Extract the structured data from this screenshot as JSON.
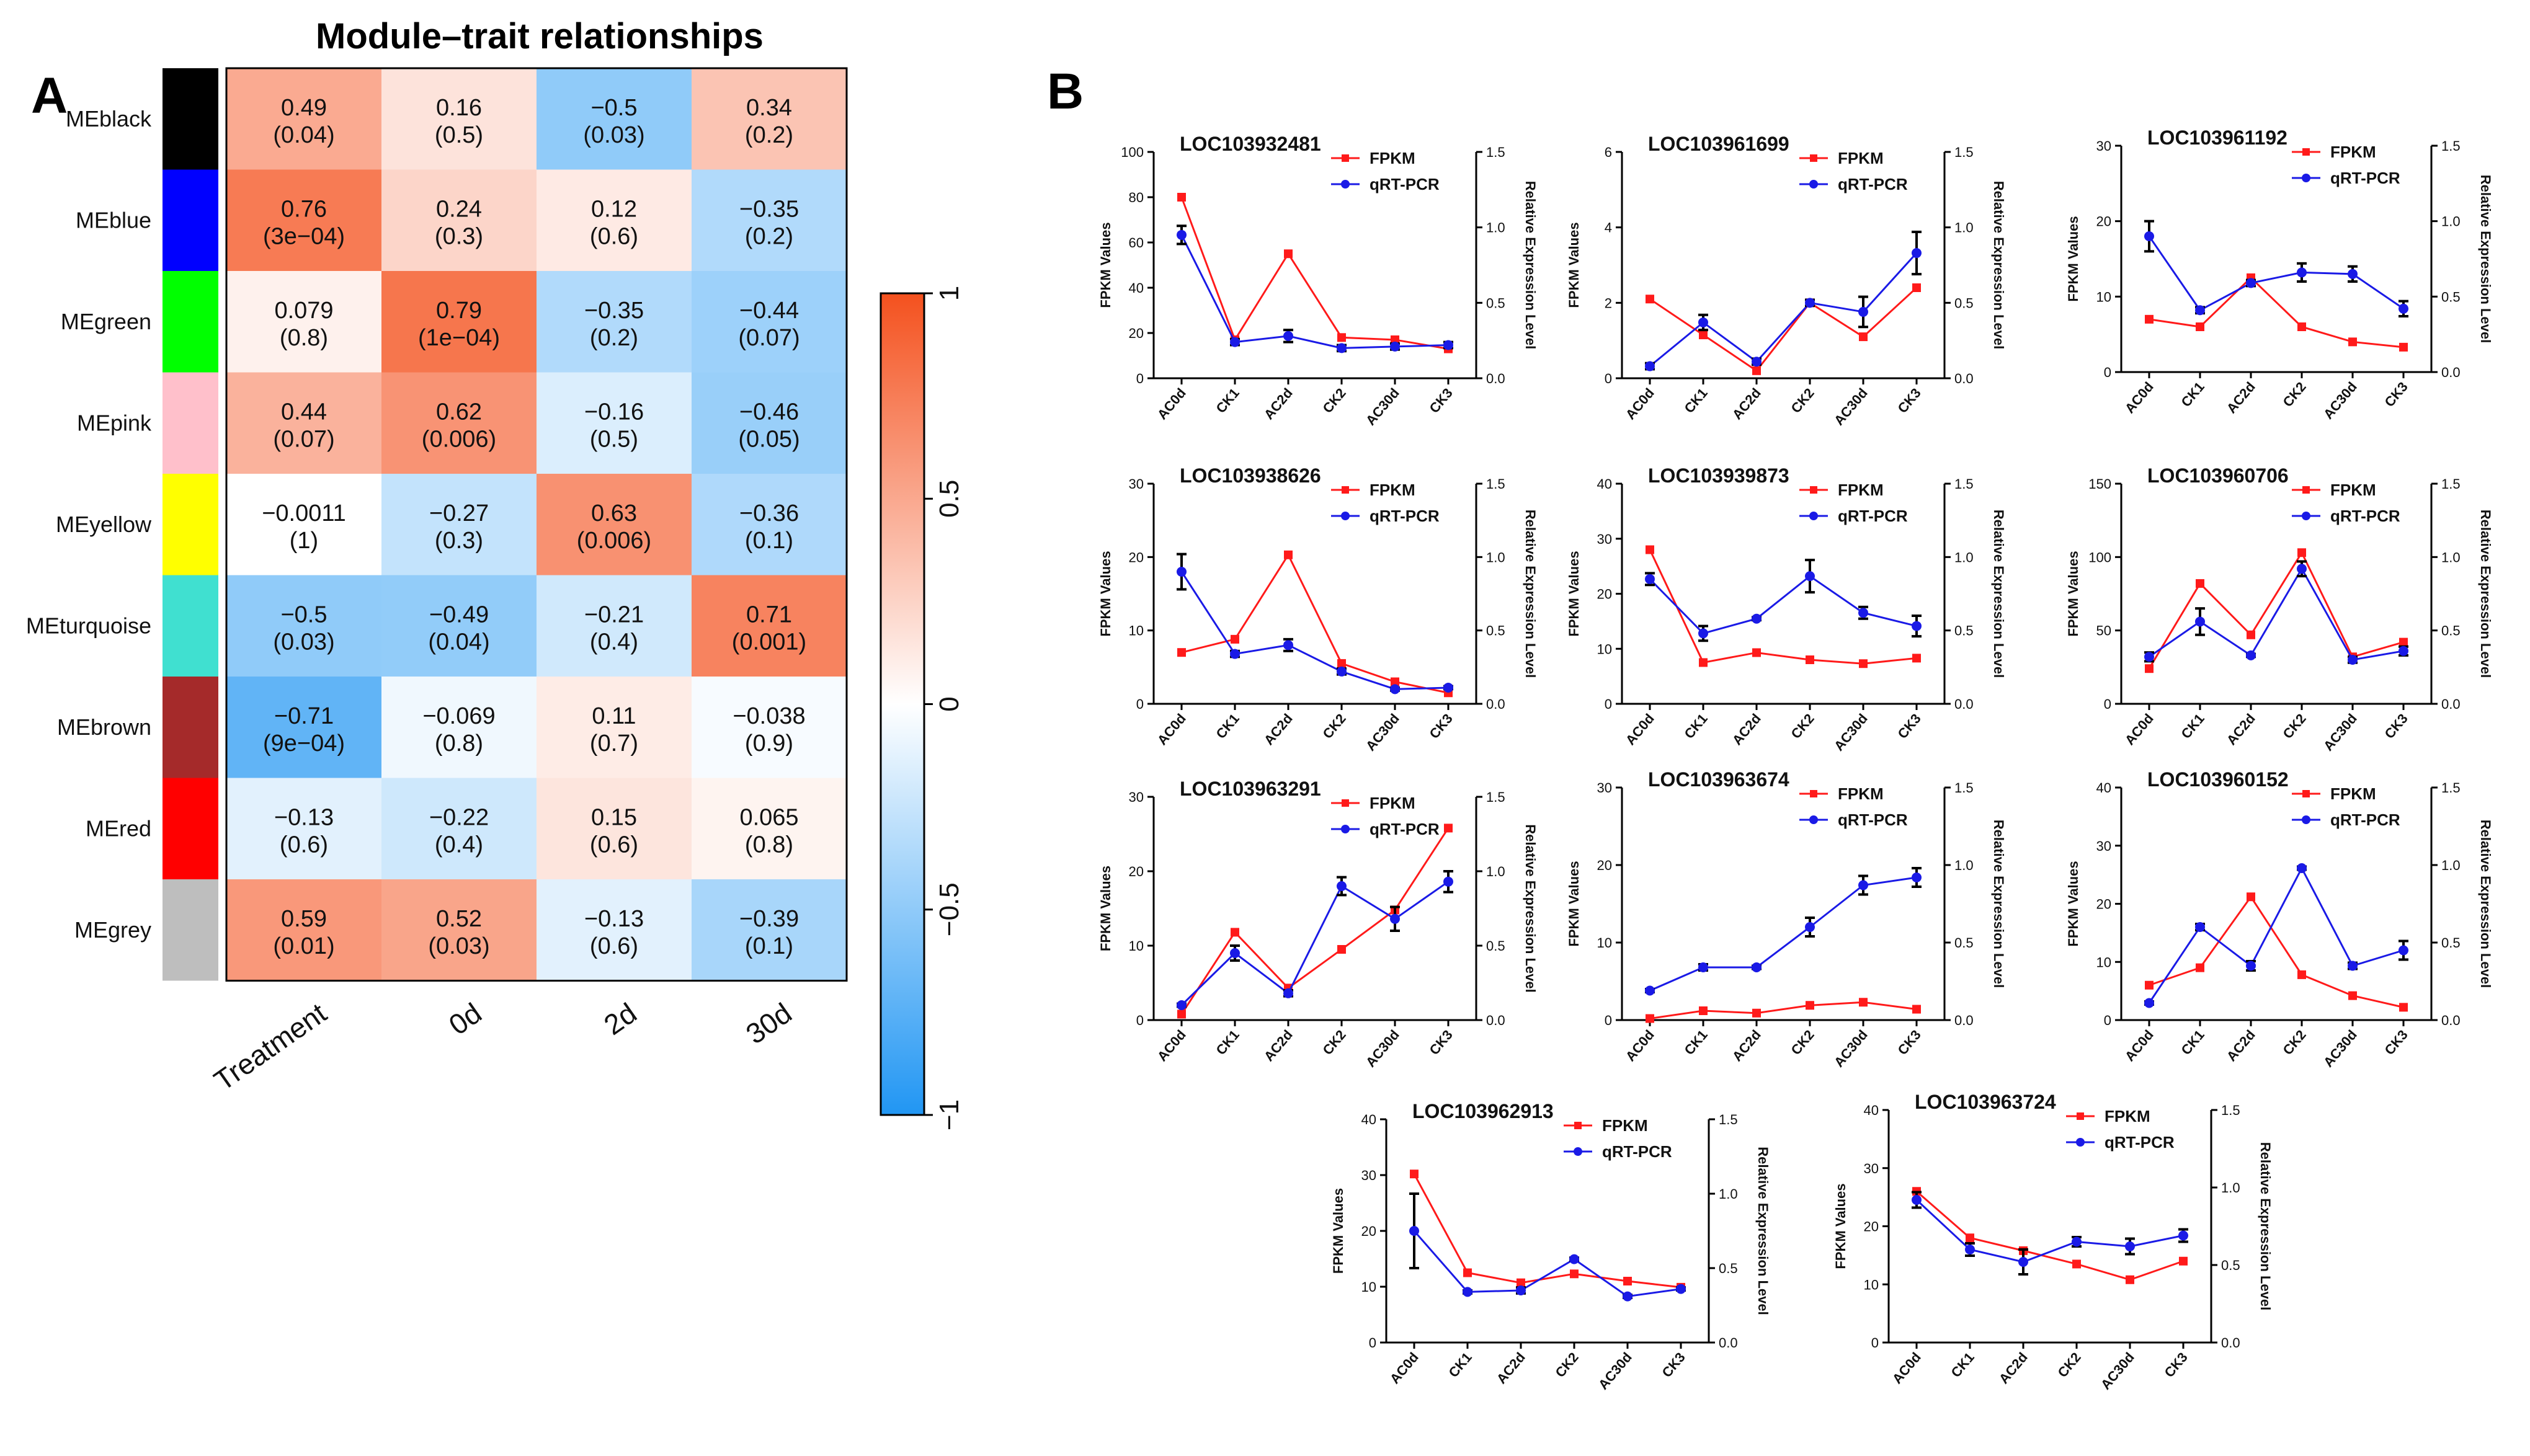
{
  "panel_a": {
    "letter": "A",
    "title": "Module–trait relationships",
    "columns": [
      "Treatment",
      "0d",
      "2d",
      "30d"
    ],
    "modules": [
      {
        "name": "MEblack",
        "color": "#000000",
        "cells": [
          [
            "0.49",
            "(0.04)",
            0.49
          ],
          [
            "0.16",
            "(0.5)",
            0.16
          ],
          [
            "−0.5",
            "(0.03)",
            -0.5
          ],
          [
            "0.34",
            "(0.2)",
            0.34
          ]
        ]
      },
      {
        "name": "MEblue",
        "color": "#0000FF",
        "cells": [
          [
            "0.76",
            "(3e−04)",
            0.76
          ],
          [
            "0.24",
            "(0.3)",
            0.24
          ],
          [
            "0.12",
            "(0.6)",
            0.12
          ],
          [
            "−0.35",
            "(0.2)",
            -0.35
          ]
        ]
      },
      {
        "name": "MEgreen",
        "color": "#00FF00",
        "cells": [
          [
            "0.079",
            "(0.8)",
            0.079
          ],
          [
            "0.79",
            "(1e−04)",
            0.79
          ],
          [
            "−0.35",
            "(0.2)",
            -0.35
          ],
          [
            "−0.44",
            "(0.07)",
            -0.44
          ]
        ]
      },
      {
        "name": "MEpink",
        "color": "#FFC0CB",
        "cells": [
          [
            "0.44",
            "(0.07)",
            0.44
          ],
          [
            "0.62",
            "(0.006)",
            0.62
          ],
          [
            "−0.16",
            "(0.5)",
            -0.16
          ],
          [
            "−0.46",
            "(0.05)",
            -0.46
          ]
        ]
      },
      {
        "name": "MEyellow",
        "color": "#FFFF00",
        "cells": [
          [
            "−0.0011",
            "(1)",
            -0.0011
          ],
          [
            "−0.27",
            "(0.3)",
            -0.27
          ],
          [
            "0.63",
            "(0.006)",
            0.63
          ],
          [
            "−0.36",
            "(0.1)",
            -0.36
          ]
        ]
      },
      {
        "name": "MEturquoise",
        "color": "#40E0D0",
        "cells": [
          [
            "−0.5",
            "(0.03)",
            -0.5
          ],
          [
            "−0.49",
            "(0.04)",
            -0.49
          ],
          [
            "−0.21",
            "(0.4)",
            -0.21
          ],
          [
            "0.71",
            "(0.001)",
            0.71
          ]
        ]
      },
      {
        "name": "MEbrown",
        "color": "#A52A2A",
        "cells": [
          [
            "−0.71",
            "(9e−04)",
            -0.71
          ],
          [
            "−0.069",
            "(0.8)",
            -0.069
          ],
          [
            "0.11",
            "(0.7)",
            0.11
          ],
          [
            "−0.038",
            "(0.9)",
            -0.038
          ]
        ]
      },
      {
        "name": "MEred",
        "color": "#FF0000",
        "cells": [
          [
            "−0.13",
            "(0.6)",
            -0.13
          ],
          [
            "−0.22",
            "(0.4)",
            -0.22
          ],
          [
            "0.15",
            "(0.6)",
            0.15
          ],
          [
            "0.065",
            "(0.8)",
            0.065
          ]
        ]
      },
      {
        "name": "MEgrey",
        "color": "#BEBEBE",
        "cells": [
          [
            "0.59",
            "(0.01)",
            0.59
          ],
          [
            "0.52",
            "(0.03)",
            0.52
          ],
          [
            "−0.13",
            "(0.6)",
            -0.13
          ],
          [
            "−0.39",
            "(0.1)",
            -0.39
          ]
        ]
      }
    ],
    "colorbar": {
      "ticks": [
        "1",
        "0.5",
        "0",
        "−0.5",
        "−1"
      ],
      "low_color": "#2196F3",
      "mid_color": "#FFFFFF",
      "high_color": "#F4511E"
    }
  },
  "panel_b": {
    "letter": "B",
    "x_categories": [
      "AC0d",
      "CK1",
      "AC2d",
      "CK2",
      "AC30d",
      "CK3"
    ],
    "left_axis_title": "FPKM Values",
    "right_axis_title": "Relative Expression Level",
    "legend": {
      "fpkm": "FPKM",
      "qrt": "qRT-PCR",
      "fpkm_color": "#FF1A1A",
      "qrt_color": "#1A1AE6"
    },
    "right_ticks": [
      "0.0",
      "0.5",
      "1.0",
      "1.5"
    ]
  },
  "chart_data": [
    {
      "type": "line",
      "title": "LOC103932481",
      "categories": [
        "AC0d",
        "CK1",
        "AC2d",
        "CK2",
        "AC30d",
        "CK3"
      ],
      "ylim": [
        0,
        100
      ],
      "yticks": [
        "0",
        "20",
        "40",
        "60",
        "80",
        "100"
      ],
      "y2lim": [
        0,
        1.5
      ],
      "series": [
        {
          "name": "FPKM",
          "axis": "left",
          "values": [
            80,
            17,
            55,
            18,
            17,
            13
          ],
          "err": [
            0,
            0,
            0,
            0,
            0,
            0
          ]
        },
        {
          "name": "qRT-PCR",
          "axis": "right",
          "values": [
            0.95,
            0.24,
            0.28,
            0.2,
            0.21,
            0.22
          ],
          "err": [
            0.06,
            0.02,
            0.04,
            0.02,
            0.02,
            0.02
          ]
        }
      ]
    },
    {
      "type": "line",
      "title": "LOC103961699",
      "categories": [
        "AC0d",
        "CK1",
        "AC2d",
        "CK2",
        "AC30d",
        "CK3"
      ],
      "ylim": [
        0,
        6
      ],
      "yticks": [
        "0",
        "2",
        "4",
        "6"
      ],
      "y2lim": [
        0,
        1.5
      ],
      "series": [
        {
          "name": "FPKM",
          "axis": "left",
          "values": [
            2.1,
            1.15,
            0.2,
            2.0,
            1.1,
            2.4
          ],
          "err": [
            0,
            0,
            0,
            0,
            0,
            0
          ]
        },
        {
          "name": "qRT-PCR",
          "axis": "right",
          "values": [
            0.08,
            0.37,
            0.11,
            0.5,
            0.44,
            0.83
          ],
          "err": [
            0.02,
            0.05,
            0.02,
            0.02,
            0.1,
            0.14
          ]
        }
      ]
    },
    {
      "type": "line",
      "title": "LOC103961192",
      "categories": [
        "AC0d",
        "CK1",
        "AC2d",
        "CK2",
        "AC30d",
        "CK3"
      ],
      "ylim": [
        0,
        30
      ],
      "yticks": [
        "0",
        "10",
        "20",
        "30"
      ],
      "y2lim": [
        0,
        1.5
      ],
      "series": [
        {
          "name": "FPKM",
          "axis": "left",
          "values": [
            7,
            6,
            12.5,
            6,
            4,
            3.3
          ],
          "err": [
            0,
            0,
            0,
            0,
            0,
            0
          ]
        },
        {
          "name": "qRT-PCR",
          "axis": "right",
          "values": [
            0.9,
            0.41,
            0.59,
            0.66,
            0.65,
            0.42
          ],
          "err": [
            0.1,
            0.02,
            0.02,
            0.06,
            0.05,
            0.05
          ]
        }
      ]
    },
    {
      "type": "line",
      "title": "LOC103938626",
      "categories": [
        "AC0d",
        "CK1",
        "AC2d",
        "CK2",
        "AC30d",
        "CK3"
      ],
      "ylim": [
        0,
        30
      ],
      "yticks": [
        "0",
        "10",
        "20",
        "30"
      ],
      "y2lim": [
        0,
        1.5
      ],
      "series": [
        {
          "name": "FPKM",
          "axis": "left",
          "values": [
            7,
            8.8,
            20.3,
            5.5,
            3,
            1.5
          ],
          "err": [
            0,
            0,
            0,
            0,
            0,
            0
          ]
        },
        {
          "name": "qRT-PCR",
          "axis": "right",
          "values": [
            0.9,
            0.34,
            0.4,
            0.22,
            0.1,
            0.11
          ],
          "err": [
            0.12,
            0.02,
            0.04,
            0.02,
            0.01,
            0.01
          ]
        }
      ]
    },
    {
      "type": "line",
      "title": "LOC103939873",
      "categories": [
        "AC0d",
        "CK1",
        "AC2d",
        "CK2",
        "AC30d",
        "CK3"
      ],
      "ylim": [
        0,
        40
      ],
      "yticks": [
        "0",
        "10",
        "20",
        "30",
        "40"
      ],
      "y2lim": [
        0,
        1.5
      ],
      "series": [
        {
          "name": "FPKM",
          "axis": "left",
          "values": [
            28,
            7.5,
            9.3,
            8,
            7.3,
            8.3
          ],
          "err": [
            0,
            0,
            0,
            0,
            0,
            0
          ]
        },
        {
          "name": "qRT-PCR",
          "axis": "right",
          "values": [
            0.85,
            0.48,
            0.58,
            0.87,
            0.62,
            0.53
          ],
          "err": [
            0.04,
            0.05,
            0.01,
            0.11,
            0.04,
            0.07
          ]
        }
      ]
    },
    {
      "type": "line",
      "title": "LOC103960706",
      "categories": [
        "AC0d",
        "CK1",
        "AC2d",
        "CK2",
        "AC30d",
        "CK3"
      ],
      "ylim": [
        0,
        150
      ],
      "yticks": [
        "0",
        "50",
        "100",
        "150"
      ],
      "y2lim": [
        0,
        1.5
      ],
      "series": [
        {
          "name": "FPKM",
          "axis": "left",
          "values": [
            24,
            82,
            47,
            103,
            32,
            42
          ],
          "err": [
            0,
            0,
            0,
            0,
            0,
            0
          ]
        },
        {
          "name": "qRT-PCR",
          "axis": "right",
          "values": [
            0.32,
            0.56,
            0.33,
            0.92,
            0.3,
            0.36
          ],
          "err": [
            0.03,
            0.09,
            0.01,
            0.05,
            0.02,
            0.03
          ]
        }
      ]
    },
    {
      "type": "line",
      "title": "LOC103963291",
      "categories": [
        "AC0d",
        "CK1",
        "AC2d",
        "CK2",
        "AC30d",
        "CK3"
      ],
      "ylim": [
        0,
        30
      ],
      "yticks": [
        "0",
        "10",
        "20",
        "30"
      ],
      "y2lim": [
        0,
        1.5
      ],
      "series": [
        {
          "name": "FPKM",
          "axis": "left",
          "values": [
            0.8,
            11.8,
            4.3,
            9.5,
            14.8,
            25.8
          ],
          "err": [
            0,
            0,
            0,
            0,
            0,
            0
          ]
        },
        {
          "name": "qRT-PCR",
          "axis": "right",
          "values": [
            0.1,
            0.45,
            0.18,
            0.9,
            0.68,
            0.93
          ],
          "err": [
            0.01,
            0.05,
            0.02,
            0.06,
            0.08,
            0.07
          ]
        }
      ]
    },
    {
      "type": "line",
      "title": "LOC103963674",
      "categories": [
        "AC0d",
        "CK1",
        "AC2d",
        "CK2",
        "AC30d",
        "CK3"
      ],
      "ylim": [
        0,
        30
      ],
      "yticks": [
        "0",
        "10",
        "20",
        "30"
      ],
      "y2lim": [
        0,
        1.5
      ],
      "series": [
        {
          "name": "FPKM",
          "axis": "left",
          "values": [
            0.2,
            1.2,
            0.9,
            1.9,
            2.3,
            1.4
          ],
          "err": [
            0,
            0,
            0,
            0,
            0,
            0
          ]
        },
        {
          "name": "qRT-PCR",
          "axis": "right",
          "values": [
            0.19,
            0.34,
            0.34,
            0.6,
            0.87,
            0.92
          ],
          "err": [
            0.01,
            0.02,
            0.01,
            0.06,
            0.06,
            0.06
          ]
        }
      ]
    },
    {
      "type": "line",
      "title": "LOC103960152",
      "categories": [
        "AC0d",
        "CK1",
        "AC2d",
        "CK2",
        "AC30d",
        "CK3"
      ],
      "ylim": [
        0,
        40
      ],
      "yticks": [
        "0",
        "10",
        "20",
        "30",
        "40"
      ],
      "y2lim": [
        0,
        1.5
      ],
      "series": [
        {
          "name": "FPKM",
          "axis": "left",
          "values": [
            6,
            9,
            21.2,
            7.8,
            4.2,
            2.2
          ],
          "err": [
            0,
            0,
            0,
            0,
            0,
            0
          ]
        },
        {
          "name": "qRT-PCR",
          "axis": "right",
          "values": [
            0.11,
            0.6,
            0.35,
            0.98,
            0.35,
            0.45
          ],
          "err": [
            0.01,
            0.02,
            0.03,
            0.01,
            0.02,
            0.06
          ]
        }
      ]
    },
    {
      "type": "line",
      "title": "LOC103962913",
      "categories": [
        "AC0d",
        "CK1",
        "AC2d",
        "CK2",
        "AC30d",
        "CK3"
      ],
      "ylim": [
        0,
        40
      ],
      "yticks": [
        "0",
        "10",
        "20",
        "30",
        "40"
      ],
      "y2lim": [
        0,
        1.5
      ],
      "series": [
        {
          "name": "FPKM",
          "axis": "left",
          "values": [
            30.2,
            12.5,
            10.7,
            12.3,
            11,
            9.9
          ],
          "err": [
            0,
            0,
            0,
            0,
            0,
            0
          ]
        },
        {
          "name": "qRT-PCR",
          "axis": "right",
          "values": [
            0.75,
            0.34,
            0.35,
            0.56,
            0.31,
            0.36
          ],
          "err": [
            0.25,
            0.01,
            0.02,
            0.01,
            0.01,
            0.01
          ]
        }
      ]
    },
    {
      "type": "line",
      "title": "LOC103963724",
      "categories": [
        "AC0d",
        "CK1",
        "AC2d",
        "CK2",
        "AC30d",
        "CK3"
      ],
      "ylim": [
        0,
        40
      ],
      "yticks": [
        "0",
        "10",
        "20",
        "30",
        "40"
      ],
      "y2lim": [
        0,
        1.5
      ],
      "series": [
        {
          "name": "FPKM",
          "axis": "left",
          "values": [
            26,
            18,
            15.8,
            13.5,
            10.8,
            14
          ],
          "err": [
            0,
            0,
            0,
            0,
            0,
            0
          ]
        },
        {
          "name": "qRT-PCR",
          "axis": "right",
          "values": [
            0.92,
            0.6,
            0.52,
            0.65,
            0.62,
            0.69
          ],
          "err": [
            0.05,
            0.04,
            0.08,
            0.03,
            0.05,
            0.04
          ]
        }
      ]
    }
  ]
}
